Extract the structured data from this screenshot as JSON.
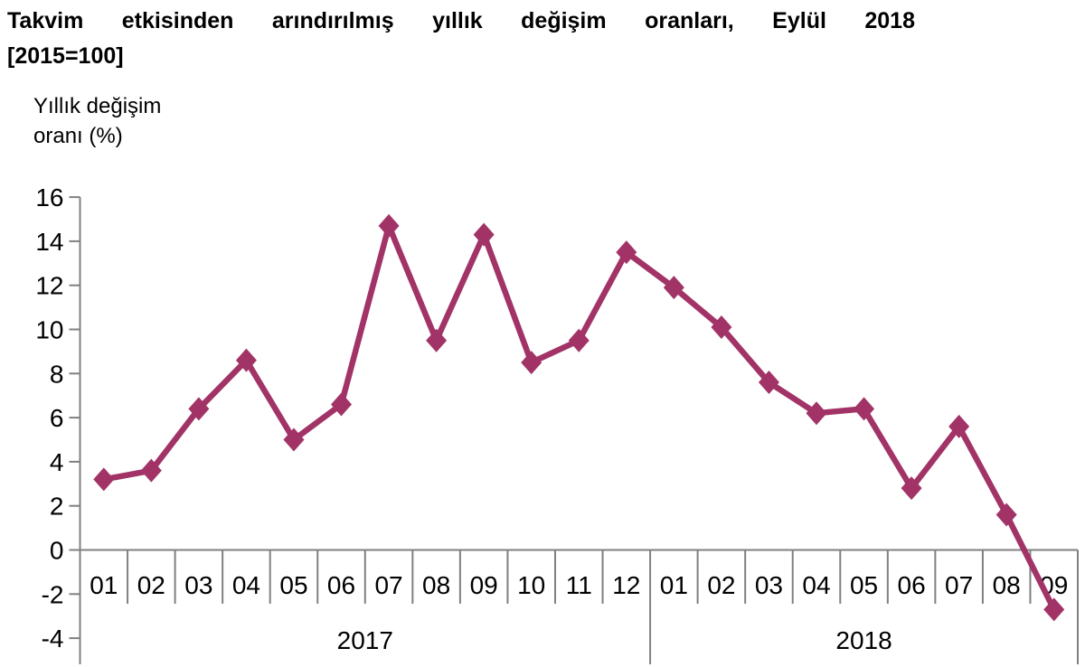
{
  "title": {
    "line1": "Takvim etkisinden arındırılmış yıllık değişim oranları, Eylül 2018",
    "line2": "[2015=100]"
  },
  "y_axis_label": {
    "line1": "Yıllık değişim",
    "line2": "oranı (%)"
  },
  "colors": {
    "line": "#A23367",
    "axis": "#808080",
    "text": "#000000",
    "background": "#ffffff"
  },
  "chart_data": {
    "type": "line",
    "title": "Takvim etkisinden arındırılmış yıllık değişim oranları, Eylül 2018",
    "subtitle": "[2015=100]",
    "ylabel": "Yıllık değişim oranı (%)",
    "ylim": [
      -4,
      16
    ],
    "ytick_step": 2,
    "yticks": [
      16,
      14,
      12,
      10,
      8,
      6,
      4,
      2,
      0,
      -2,
      -4
    ],
    "grid": false,
    "legend": "none",
    "marker": "diamond",
    "line_color": "#A23367",
    "groups": [
      {
        "year": "2017",
        "months": [
          "01",
          "02",
          "03",
          "04",
          "05",
          "06",
          "07",
          "08",
          "09",
          "10",
          "11",
          "12"
        ],
        "values": [
          3.2,
          3.6,
          6.4,
          8.6,
          5.0,
          6.6,
          14.7,
          9.5,
          14.3,
          8.5,
          9.5,
          13.5
        ]
      },
      {
        "year": "2018",
        "months": [
          "01",
          "02",
          "03",
          "04",
          "05",
          "06",
          "07",
          "08",
          "09"
        ],
        "values": [
          11.9,
          10.1,
          7.6,
          6.2,
          6.4,
          2.8,
          5.6,
          1.6,
          -2.7
        ]
      }
    ]
  }
}
